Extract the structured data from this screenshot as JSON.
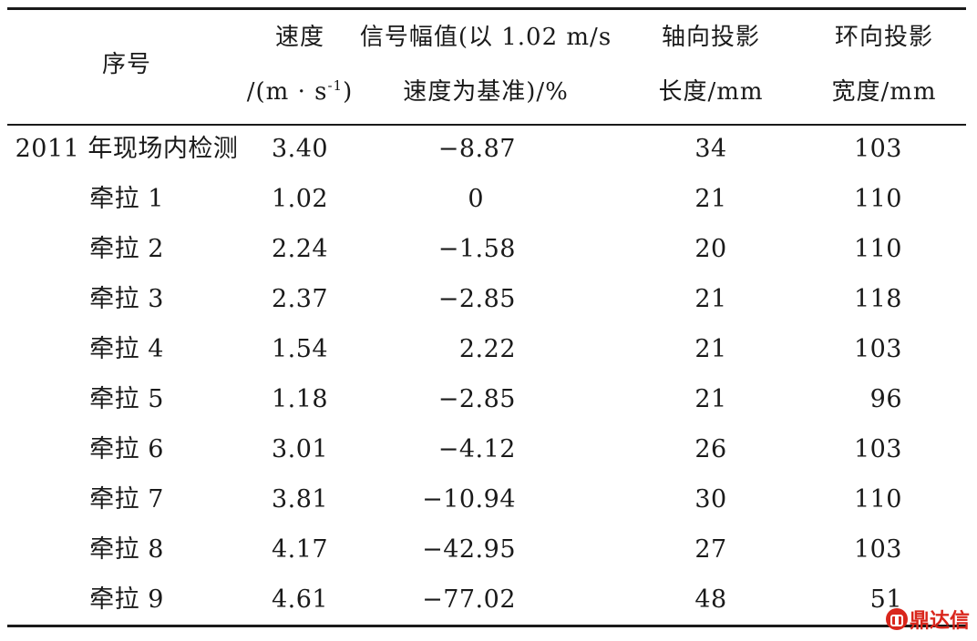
{
  "table": {
    "headers": {
      "index": "序号",
      "speed": "速度",
      "speed_unit_pre": "/(m · s",
      "speed_unit_sup": "-1",
      "speed_unit_post": ")",
      "signal_line1": "信号幅值(以 1.02 m/s",
      "signal_line2": "速度为基准)/%",
      "axial_line1": "轴向投影",
      "axial_line2": "长度/mm",
      "hoop_line1": "环向投影",
      "hoop_line2": "宽度/mm"
    },
    "rows": [
      {
        "name": "2011 年现场内检测",
        "speed": "3.40",
        "signal": "−8.87",
        "axial": "34",
        "hoop": "103"
      },
      {
        "name": "牵拉 1",
        "speed": "1.02",
        "signal": "0",
        "axial": "21",
        "hoop": "110"
      },
      {
        "name": "牵拉 2",
        "speed": "2.24",
        "signal": "−1.58",
        "axial": "20",
        "hoop": "110"
      },
      {
        "name": "牵拉 3",
        "speed": "2.37",
        "signal": "−2.85",
        "axial": "21",
        "hoop": "118"
      },
      {
        "name": "牵拉 4",
        "speed": "1.54",
        "signal": "2.22",
        "axial": "21",
        "hoop": "103"
      },
      {
        "name": "牵拉 5",
        "speed": "1.18",
        "signal": "−2.85",
        "axial": "21",
        "hoop": "96"
      },
      {
        "name": "牵拉 6",
        "speed": "3.01",
        "signal": "−4.12",
        "axial": "26",
        "hoop": "103"
      },
      {
        "name": "牵拉 7",
        "speed": "3.81",
        "signal": "−10.94",
        "axial": "30",
        "hoop": "110"
      },
      {
        "name": "牵拉 8",
        "speed": "4.17",
        "signal": "−42.95",
        "axial": "27",
        "hoop": "103"
      },
      {
        "name": "牵拉 9",
        "speed": "4.61",
        "signal": "−77.02",
        "axial": "48",
        "hoop": "51"
      }
    ]
  },
  "watermark": {
    "text": "鼎达信",
    "color": "#d9261c"
  }
}
